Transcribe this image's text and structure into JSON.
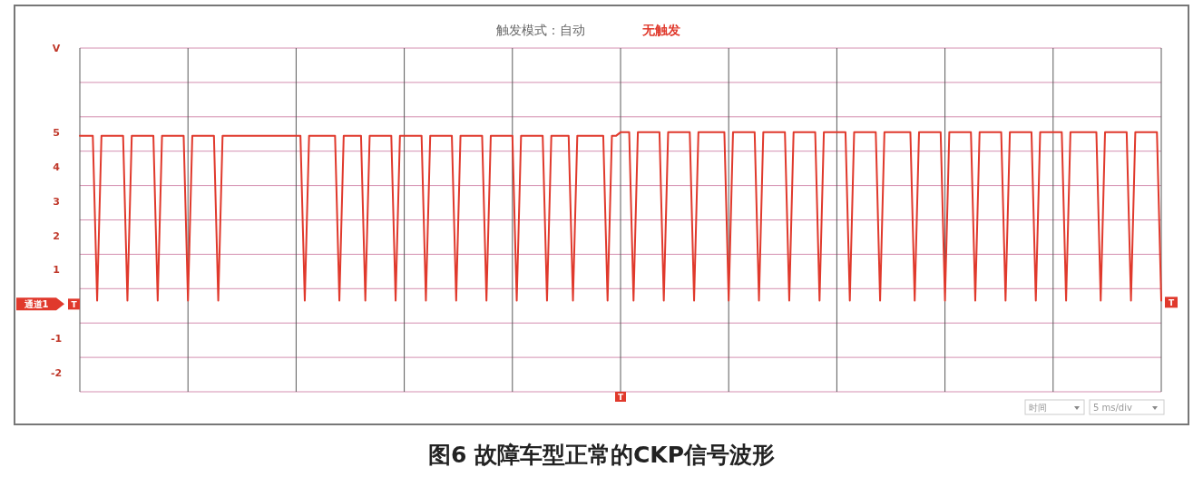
{
  "chart_data": {
    "type": "line",
    "title": "触发模式：自动",
    "subtitle": "无触发",
    "ylabel": "V",
    "categories": [
      null,
      null,
      null,
      null,
      null,
      null,
      null,
      null,
      null,
      null,
      null,
      null,
      null,
      null,
      null,
      null,
      null,
      null,
      null,
      null,
      null,
      null,
      null,
      null,
      null,
      null,
      null,
      null,
      null,
      null,
      null,
      null,
      null,
      null,
      null,
      null,
      null,
      null,
      null,
      null,
      null,
      null,
      null,
      null,
      null,
      null,
      null,
      null,
      null,
      null,
      null,
      null,
      null,
      null,
      null,
      null,
      null,
      null,
      null,
      null,
      null,
      null,
      null,
      null,
      null,
      null,
      null,
      null,
      null,
      null,
      null,
      null,
      null,
      null,
      null,
      null,
      null,
      null,
      null,
      null,
      null,
      null,
      null,
      null,
      null,
      null,
      null,
      null,
      null,
      null,
      null,
      null,
      null,
      null,
      null,
      null,
      null,
      null,
      null,
      null,
      null,
      null,
      null,
      null,
      null,
      null,
      null,
      null,
      null,
      null,
      null,
      null,
      null,
      null,
      null,
      null,
      null,
      null,
      null,
      null,
      null,
      null,
      null,
      null,
      null,
      null,
      null,
      null,
      null,
      null,
      null,
      null,
      null,
      null,
      null,
      null,
      null,
      null,
      null,
      null,
      null,
      null,
      null,
      null,
      null,
      null,
      null,
      null,
      null,
      null,
      null,
      null,
      null,
      null,
      null,
      null,
      null,
      null,
      null,
      null,
      null,
      null,
      null,
      null,
      null,
      null,
      null,
      null,
      null,
      null,
      null,
      null,
      null,
      null,
      null,
      null,
      null,
      null,
      null,
      null,
      null,
      null,
      null,
      null,
      null,
      null,
      null,
      null,
      null,
      null,
      null,
      null,
      null,
      null,
      null,
      null,
      null,
      null,
      null,
      null,
      null,
      null,
      null,
      null,
      null,
      null,
      null,
      null,
      null,
      null,
      null,
      null,
      null,
      null,
      null,
      null,
      null,
      null,
      null,
      null,
      null,
      null,
      null,
      null,
      null,
      null,
      null,
      null,
      null,
      null,
      null,
      null,
      null,
      null,
      null,
      null,
      null,
      null,
      null,
      null,
      null,
      null,
      null,
      null,
      null,
      null,
      null,
      null,
      null,
      null,
      null
    ],
    "ylim": [
      -2.55,
      7.45
    ],
    "yticks": [
      5,
      4,
      3,
      2,
      1,
      -1,
      -2,
      {
        "value": 7.45,
        "label": null
      },
      {
        "value": 6.45,
        "label": null
      },
      {
        "value": 5.45,
        "label": null
      },
      {
        "value": 4.45,
        "label": null
      },
      {
        "value": 3.45,
        "label": null
      },
      {
        "value": 2.45,
        "label": null
      },
      {
        "value": 1.45,
        "label": null
      },
      {
        "value": 0.45,
        "label": null
      },
      {
        "value": -0.55,
        "label": null
      },
      {
        "value": -1.55,
        "label": null
      },
      {
        "value": -2.55,
        "label": null
      }
    ],
    "grid": true,
    "series": [
      {
        "color": "#e0392c",
        "values": [
          4.9,
          4.9,
          4.9,
          4.9,
          0.1,
          4.9,
          4.9,
          4.9,
          4.9,
          4.9,
          4.9,
          0.1,
          4.9,
          4.9,
          4.9,
          4.9,
          4.9,
          4.9,
          0.1,
          4.9,
          4.9,
          4.9,
          4.9,
          4.9,
          4.9,
          0.1,
          4.9,
          4.9,
          4.9,
          4.9,
          4.9,
          4.9,
          0.1,
          4.9,
          4.9,
          4.9,
          4.9,
          4.9,
          4.9,
          4.9,
          4.9,
          4.9,
          4.9,
          4.9,
          4.9,
          4.9,
          4.9,
          4.9,
          4.9,
          4.9,
          4.9,
          4.9,
          0.1,
          4.9,
          4.9,
          4.9,
          4.9,
          4.9,
          4.9,
          4.9,
          0.1,
          4.9,
          4.9,
          4.9,
          4.9,
          4.9,
          0.1,
          4.9,
          4.9,
          4.9,
          4.9,
          4.9,
          4.9,
          0.1,
          4.9,
          4.9,
          4.9,
          4.9,
          4.9,
          4.9,
          0.1,
          4.9,
          4.9,
          4.9,
          4.9,
          4.9,
          4.9,
          0.1,
          4.9,
          4.9,
          4.9,
          4.9,
          4.9,
          4.9,
          0.1,
          4.9,
          4.9,
          4.9,
          4.9,
          4.9,
          4.9,
          0.1,
          4.9,
          4.9,
          4.9,
          4.9,
          4.9,
          4.9,
          0.1,
          4.9,
          4.9,
          4.9,
          4.9,
          4.9,
          0.1,
          4.9,
          4.9,
          4.9,
          4.9,
          4.9,
          4.9,
          4.9,
          0.1,
          4.9,
          4.9,
          5.0,
          5.0,
          5.0,
          0.1,
          5.0,
          5.0,
          5.0,
          5.0,
          5.0,
          5.0,
          0.1,
          5.0,
          5.0,
          5.0,
          5.0,
          5.0,
          5.0,
          0.1,
          5.0,
          5.0,
          5.0,
          5.0,
          5.0,
          5.0,
          5.0,
          0.1,
          5.0,
          5.0,
          5.0,
          5.0,
          5.0,
          5.0,
          0.1,
          5.0,
          5.0,
          5.0,
          5.0,
          5.0,
          5.0,
          0.1,
          5.0,
          5.0,
          5.0,
          5.0,
          5.0,
          5.0,
          0.1,
          5.0,
          5.0,
          5.0,
          5.0,
          5.0,
          5.0,
          0.1,
          5.0,
          5.0,
          5.0,
          5.0,
          5.0,
          5.0,
          0.1,
          5.0,
          5.0,
          5.0,
          5.0,
          5.0,
          5.0,
          5.0,
          0.1,
          5.0,
          5.0,
          5.0,
          5.0,
          5.0,
          5.0,
          0.1,
          5.0,
          5.0,
          5.0,
          5.0,
          5.0,
          5.0,
          0.1,
          5.0,
          5.0,
          5.0,
          5.0,
          5.0,
          5.0,
          0.1,
          5.0,
          5.0,
          5.0,
          5.0,
          5.0,
          5.0,
          0.1,
          5.0,
          5.0,
          5.0,
          5.0,
          5.0,
          5.0,
          0.1,
          5.0,
          5.0,
          5.0,
          5.0,
          5.0,
          5.0,
          5.0,
          0.1,
          5.0,
          5.0,
          5.0,
          5.0,
          5.0,
          5.0,
          0.1,
          5.0,
          5.0,
          5.0,
          5.0,
          5.0,
          5.0,
          0.1
        ]
      }
    ],
    "annotations": [
      "通道1",
      "T",
      "T",
      "T",
      "时间",
      "5 ms/div",
      "图6 故障车型正常的CKP信号波形"
    ]
  }
}
